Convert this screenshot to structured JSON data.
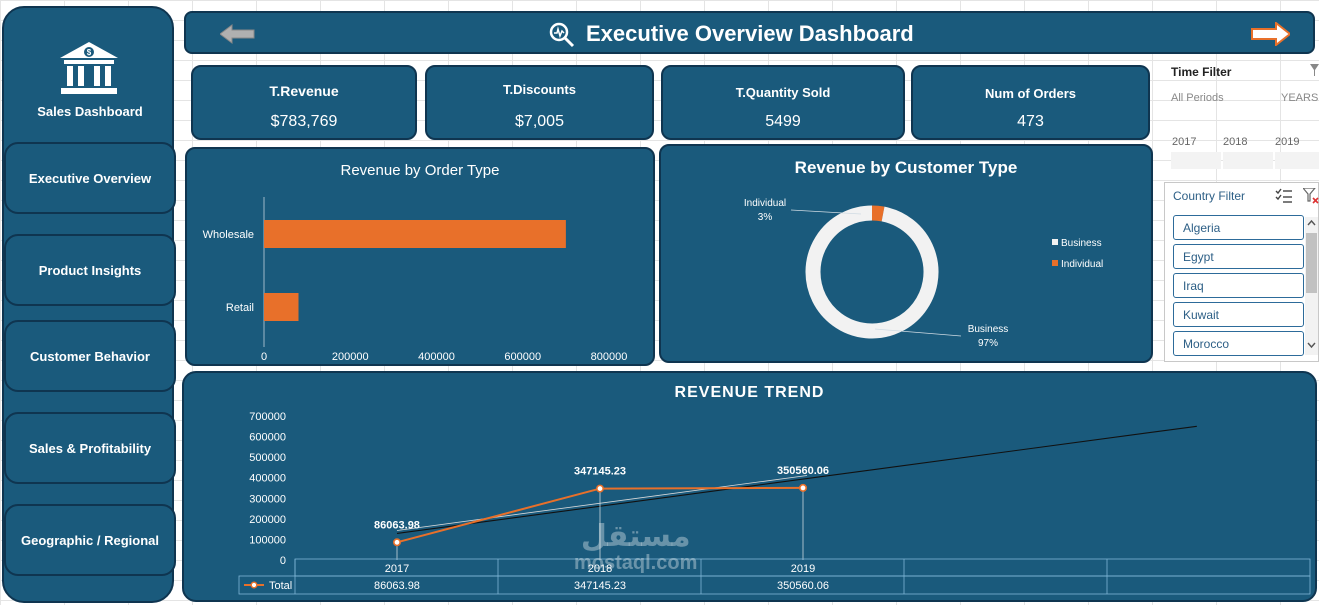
{
  "sidebar": {
    "title": "Sales Dashboard",
    "items": [
      {
        "label": "Executive Overview"
      },
      {
        "label": "Product Insights"
      },
      {
        "label": "Customer Behavior"
      },
      {
        "label": "Sales & Profitability"
      },
      {
        "label": "Geographic / Regional"
      }
    ]
  },
  "header": {
    "title": "Executive Overview Dashboard"
  },
  "kpis": [
    {
      "title": "T.Revenue",
      "value": "$783,769"
    },
    {
      "title": "T.Discounts",
      "value": "$7,005"
    },
    {
      "title": "T.Quantity Sold",
      "value": "5499"
    },
    {
      "title": "Num of Orders",
      "value": "473"
    }
  ],
  "time_filter": {
    "title": "Time Filter",
    "all_periods": "All Periods",
    "unit": "YEARS",
    "years": [
      "2017",
      "2018",
      "2019"
    ]
  },
  "country_filter": {
    "title": "Country Filter",
    "countries": [
      "Algeria",
      "Egypt",
      "Iraq",
      "Kuwait",
      "Morocco"
    ]
  },
  "colors": {
    "panel": "#1a5a7c",
    "accent": "#e8702a",
    "border": "#0f3550"
  },
  "chart_data": [
    {
      "type": "bar",
      "title": "Revenue by Order Type",
      "categories": [
        "Wholesale",
        "Retail"
      ],
      "values": [
        700000,
        80000
      ],
      "xlim": [
        0,
        800000
      ],
      "xticks": [
        "0",
        "200000",
        "400000",
        "600000",
        "800000"
      ]
    },
    {
      "type": "pie",
      "title": "Revenue by Customer Type",
      "labels": [
        "Individual",
        "Business"
      ],
      "values": [
        3,
        97
      ],
      "data_labels": [
        {
          "name": "Individual",
          "pct": "3%"
        },
        {
          "name": "Business",
          "pct": "97%"
        }
      ],
      "legend": [
        "Business",
        "Individual"
      ],
      "legend_position": "right"
    },
    {
      "type": "line",
      "title": "REVENUE TREND",
      "categories": [
        "2017",
        "2018",
        "2019"
      ],
      "series": [
        {
          "name": "Total",
          "values": [
            86063.98,
            347145.23,
            350560.06
          ]
        }
      ],
      "data_labels": [
        "86063.98",
        "347145.23",
        "350560.06"
      ],
      "ylim": [
        0,
        700000
      ],
      "yticks": [
        "700000",
        "600000",
        "500000",
        "400000",
        "300000",
        "200000",
        "100000",
        "0"
      ],
      "trendline": true
    }
  ],
  "watermark": {
    "arabic": "مستقل",
    "latin": "mostaql.com"
  }
}
